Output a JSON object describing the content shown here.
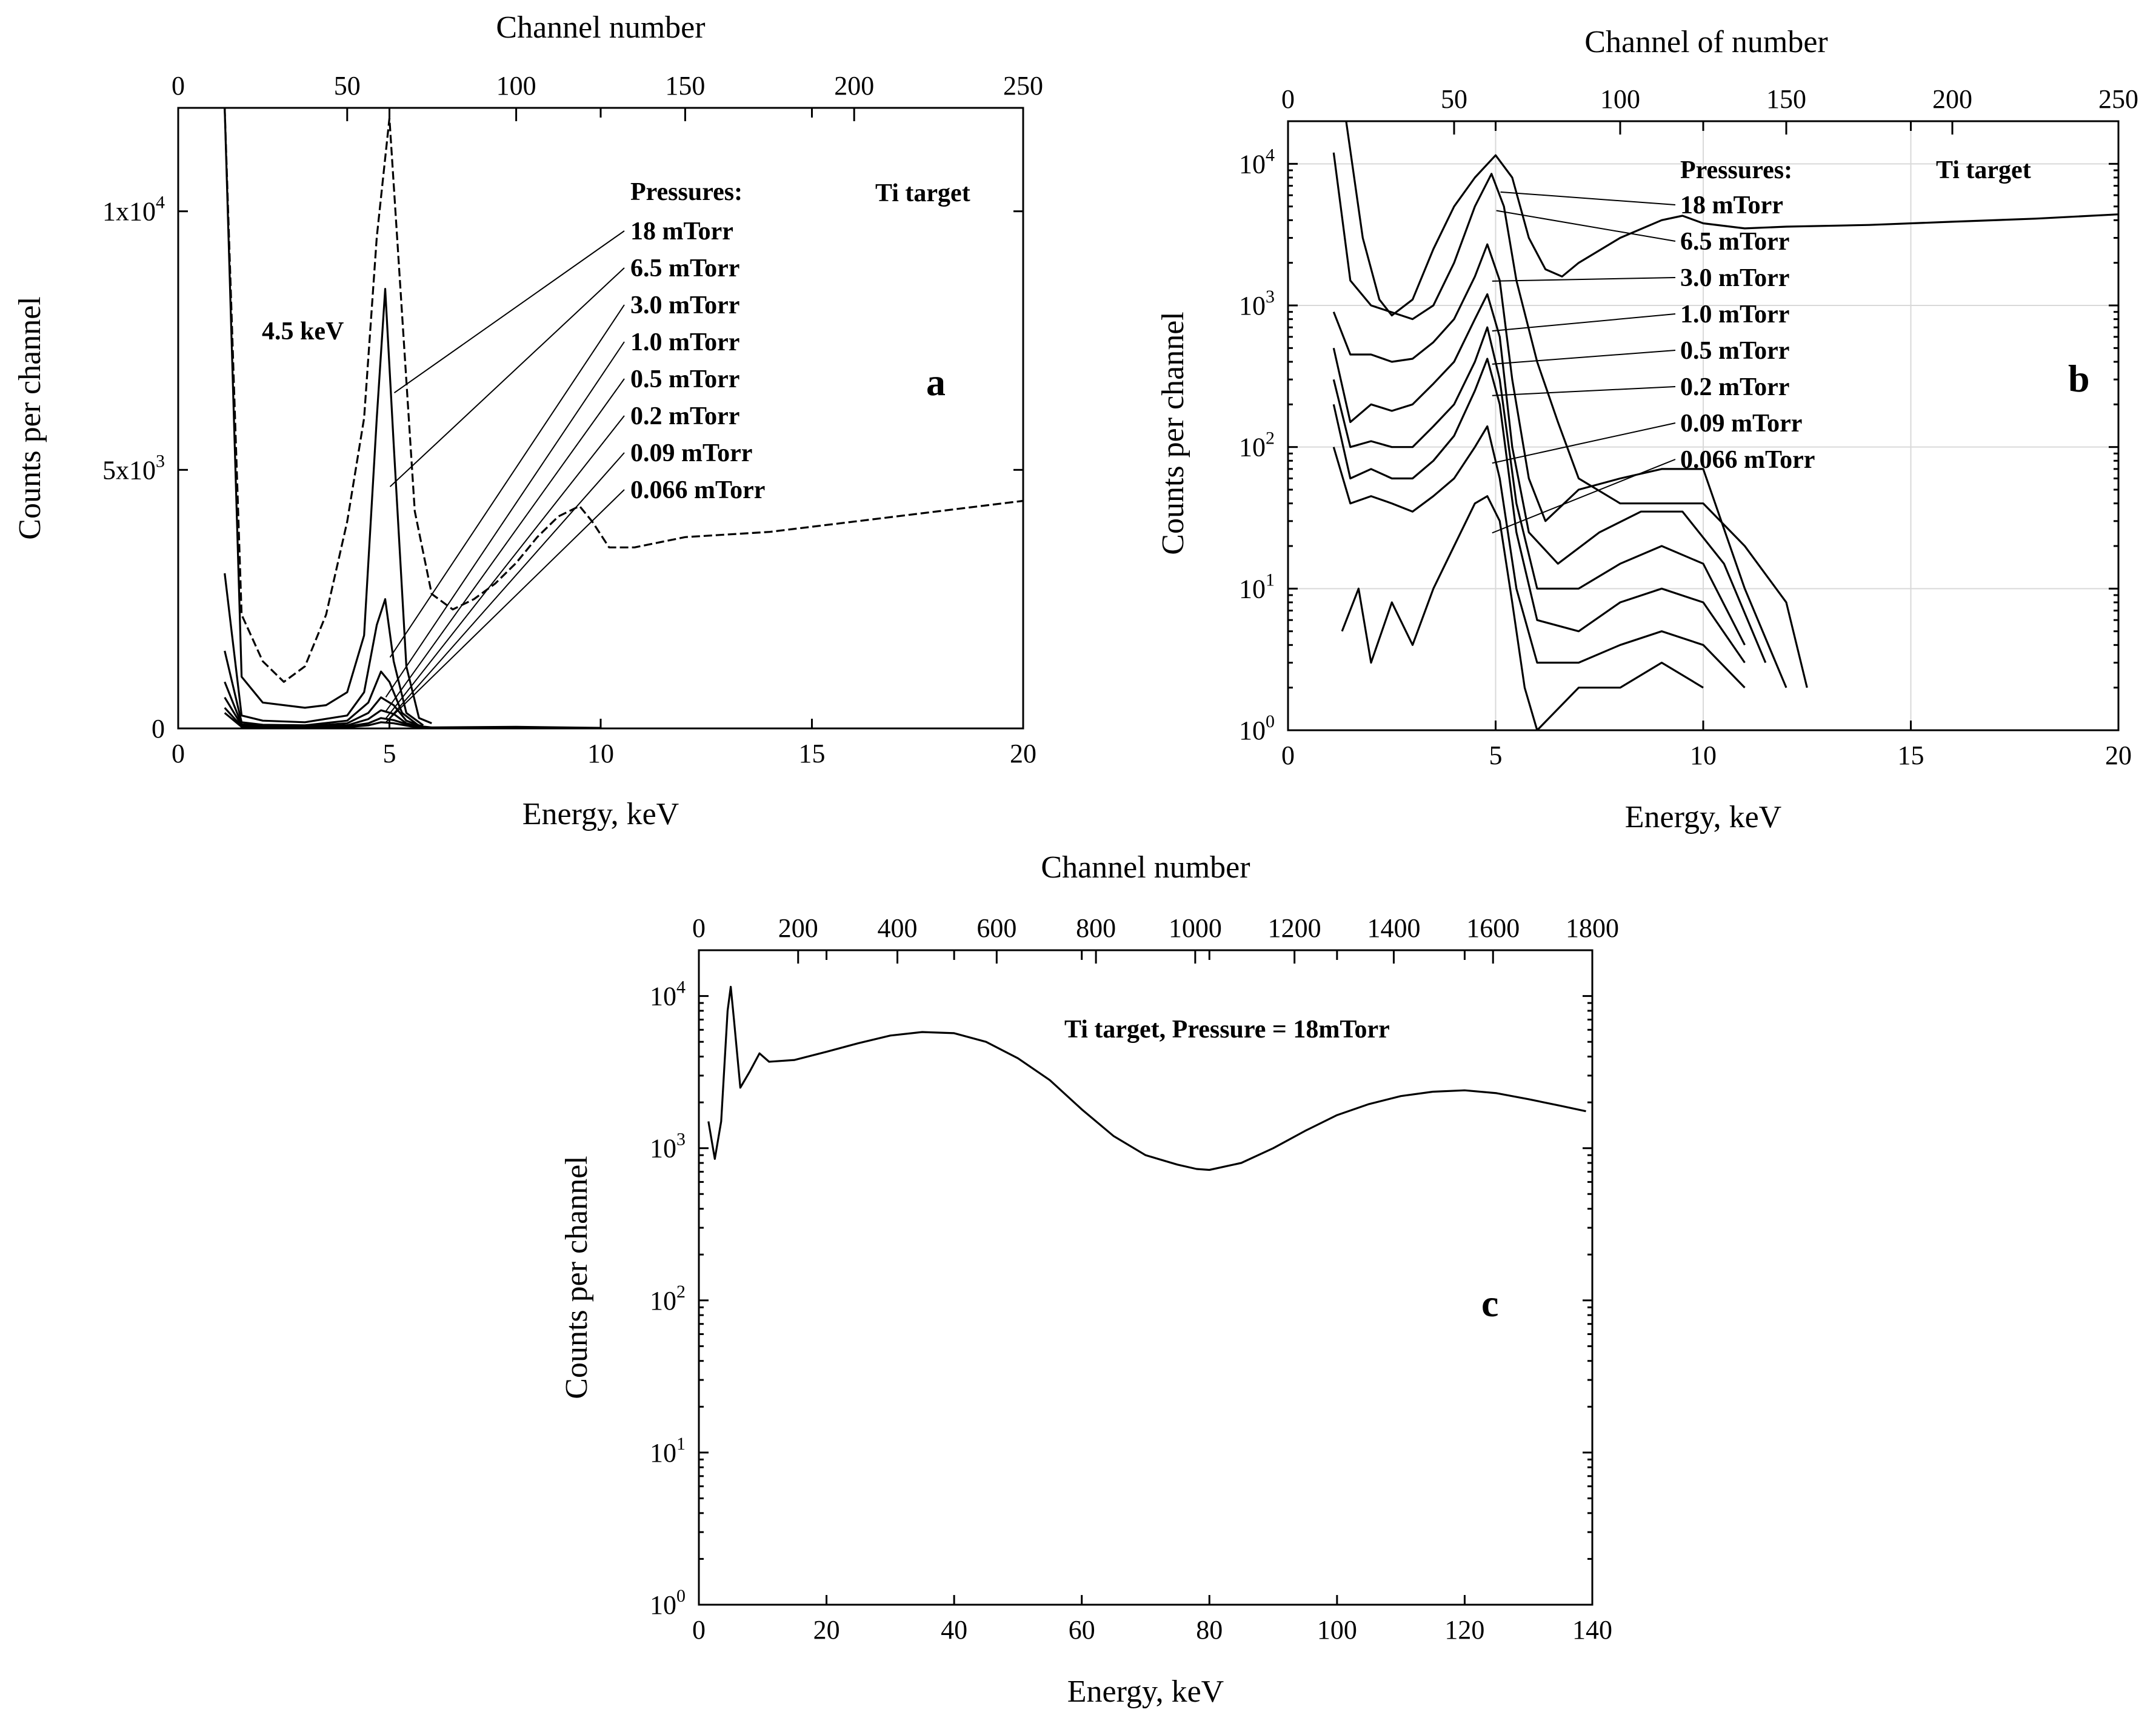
{
  "chart_data": [
    {
      "panel": "a",
      "type": "line",
      "yscale": "linear",
      "xlabel": "Energy, keV",
      "ylabel": "Counts per channel",
      "top_xlabel": "Channel number",
      "xlim": [
        0,
        20
      ],
      "ylim": [
        0,
        12000
      ],
      "x_ticks": [
        0,
        5,
        10,
        15,
        20
      ],
      "x_tick_labels": [
        "0",
        "5",
        "10",
        "15",
        "20"
      ],
      "top_ticks": [
        0,
        50,
        100,
        150,
        200,
        250
      ],
      "top_tick_labels": [
        "0",
        "50",
        "100",
        "150",
        "200",
        "250"
      ],
      "top_range": [
        0,
        250
      ],
      "y_ticks": [
        0,
        5000,
        10000
      ],
      "y_tick_labels": [
        {
          "base": "0",
          "exp": ""
        },
        {
          "base": "5x10",
          "exp": "3"
        },
        {
          "base": "1x10",
          "exp": "4"
        }
      ],
      "annotation": "4.5 keV",
      "legend_title": "Pressures:",
      "target_label": "Ti target",
      "letter": "a",
      "series": [
        {
          "name": "18 mTorr",
          "x": [
            1.1,
            1.5,
            2.0,
            2.5,
            3.0,
            3.5,
            4.0,
            4.4,
            4.7,
            5.0,
            5.3,
            5.6,
            6.0,
            6.5,
            7.0,
            7.5,
            8.0,
            8.5,
            9.0,
            9.5,
            9.8,
            10.2,
            10.8,
            12.0,
            14.0,
            16.0,
            18.0,
            20.0
          ],
          "y": [
            12000,
            2200,
            1300,
            900,
            1200,
            2200,
            4000,
            6000,
            9500,
            11800,
            8000,
            4200,
            2600,
            2300,
            2500,
            2800,
            3200,
            3700,
            4100,
            4300,
            4000,
            3500,
            3500,
            3700,
            3800,
            4000,
            4200,
            4400
          ]
        },
        {
          "name": "6.5 mTorr",
          "x": [
            1.1,
            1.5,
            2.0,
            3.0,
            3.5,
            4.0,
            4.4,
            4.7,
            4.9,
            5.1,
            5.4,
            5.7,
            6.0
          ],
          "y": [
            12000,
            1000,
            500,
            400,
            450,
            700,
            1800,
            6000,
            8500,
            5500,
            1200,
            200,
            100
          ]
        },
        {
          "name": "3.0 mTorr",
          "x": [
            1.1,
            1.5,
            2.0,
            3.0,
            4.0,
            4.4,
            4.7,
            4.9,
            5.1,
            5.4,
            5.8
          ],
          "y": [
            3000,
            250,
            150,
            120,
            250,
            700,
            2000,
            2500,
            1300,
            300,
            60
          ]
        },
        {
          "name": "1.0 mTorr",
          "x": [
            1.1,
            1.5,
            2.0,
            3.0,
            4.0,
            4.5,
            4.8,
            5.0,
            5.3,
            5.7
          ],
          "y": [
            1500,
            120,
            70,
            60,
            150,
            500,
            1100,
            900,
            300,
            50
          ]
        },
        {
          "name": "0.5 mTorr",
          "x": [
            1.1,
            1.5,
            2.0,
            3.0,
            4.0,
            4.5,
            4.8,
            5.1,
            5.4,
            5.8
          ],
          "y": [
            900,
            80,
            50,
            40,
            100,
            300,
            600,
            450,
            150,
            30
          ]
        },
        {
          "name": "0.2 mTorr",
          "x": [
            1.1,
            1.5,
            2.0,
            3.0,
            4.0,
            4.5,
            4.8,
            5.1,
            5.4,
            5.8
          ],
          "y": [
            600,
            60,
            40,
            30,
            60,
            180,
            350,
            280,
            100,
            20
          ]
        },
        {
          "name": "0.09 mTorr",
          "x": [
            1.1,
            1.5,
            2.0,
            3.0,
            4.0,
            4.5,
            4.8,
            5.1,
            5.5,
            6.0,
            8.0,
            10.0
          ],
          "y": [
            400,
            40,
            25,
            20,
            40,
            100,
            200,
            160,
            60,
            20,
            30,
            10
          ]
        },
        {
          "name": "0.066 mTorr",
          "x": [
            1.1,
            1.5,
            2.0,
            3.0,
            4.0,
            4.5,
            4.8,
            5.1,
            5.5,
            6.0,
            8.0,
            10.0
          ],
          "y": [
            300,
            30,
            20,
            15,
            25,
            60,
            120,
            100,
            40,
            15,
            20,
            5
          ]
        }
      ]
    },
    {
      "panel": "b",
      "type": "line",
      "yscale": "log",
      "xlabel": "Energy, keV",
      "ylabel": "Counts per channel",
      "top_xlabel": "Channel of number",
      "xlim": [
        0,
        20
      ],
      "ylim": [
        1,
        20000
      ],
      "x_ticks": [
        0,
        5,
        10,
        15,
        20
      ],
      "x_tick_labels": [
        "0",
        "5",
        "10",
        "15",
        "20"
      ],
      "top_ticks": [
        0,
        50,
        100,
        150,
        200,
        250
      ],
      "top_tick_labels": [
        "0",
        "50",
        "100",
        "150",
        "200",
        "250"
      ],
      "top_range": [
        0,
        250
      ],
      "y_ticks": [
        1,
        10,
        100,
        1000,
        10000
      ],
      "y_tick_labels": [
        {
          "base": "10",
          "exp": "0"
        },
        {
          "base": "10",
          "exp": "1"
        },
        {
          "base": "10",
          "exp": "2"
        },
        {
          "base": "10",
          "exp": "3"
        },
        {
          "base": "10",
          "exp": "4"
        }
      ],
      "legend_title": "Pressures:",
      "target_label": "Ti target",
      "letter": "b",
      "series": [
        {
          "name": "18 mTorr",
          "x": [
            1.4,
            1.8,
            2.2,
            2.5,
            3.0,
            3.5,
            4.0,
            4.5,
            5.0,
            5.4,
            5.8,
            6.2,
            6.6,
            7.0,
            8.0,
            9.0,
            9.5,
            10.0,
            11.0,
            12.0,
            14.0,
            16.0,
            18.0,
            20.0
          ],
          "y": [
            20000,
            3000,
            1100,
            850,
            1100,
            2500,
            5000,
            8000,
            11500,
            8000,
            3000,
            1800,
            1600,
            2000,
            3000,
            4000,
            4300,
            3800,
            3500,
            3600,
            3700,
            3900,
            4100,
            4400
          ]
        },
        {
          "name": "6.5 mTorr",
          "x": [
            1.1,
            1.5,
            2.0,
            3.0,
            3.5,
            4.0,
            4.5,
            4.9,
            5.2,
            5.5,
            6.0,
            6.5,
            7.0,
            8.0,
            9.0,
            10.0,
            11.0,
            12.0,
            12.5
          ],
          "y": [
            12000,
            1500,
            1000,
            800,
            1000,
            2000,
            5000,
            8500,
            5000,
            1500,
            400,
            150,
            60,
            40,
            40,
            40,
            20,
            8,
            2
          ]
        },
        {
          "name": "3.0 mTorr",
          "x": [
            1.1,
            1.5,
            2.0,
            2.5,
            3.0,
            3.5,
            4.0,
            4.5,
            4.8,
            5.1,
            5.4,
            5.8,
            6.2,
            7.0,
            8.0,
            9.0,
            10.0,
            11.0,
            12.0
          ],
          "y": [
            900,
            450,
            450,
            400,
            420,
            550,
            800,
            1600,
            2700,
            1500,
            300,
            60,
            30,
            50,
            60,
            70,
            70,
            10,
            2
          ]
        },
        {
          "name": "1.0 mTorr",
          "x": [
            1.1,
            1.5,
            2.0,
            2.5,
            3.0,
            3.5,
            4.0,
            4.5,
            4.8,
            5.1,
            5.4,
            5.8,
            6.5,
            7.5,
            8.5,
            9.5,
            10.5,
            11.5
          ],
          "y": [
            500,
            150,
            200,
            180,
            200,
            280,
            400,
            800,
            1200,
            600,
            100,
            25,
            15,
            25,
            35,
            35,
            15,
            3
          ]
        },
        {
          "name": "0.5 mTorr",
          "x": [
            1.1,
            1.5,
            2.0,
            2.5,
            3.0,
            3.5,
            4.0,
            4.5,
            4.8,
            5.1,
            5.5,
            6.0,
            7.0,
            8.0,
            9.0,
            10.0,
            11.0
          ],
          "y": [
            300,
            100,
            110,
            100,
            100,
            140,
            200,
            400,
            700,
            300,
            40,
            10,
            10,
            15,
            20,
            15,
            4
          ]
        },
        {
          "name": "0.2 mTorr",
          "x": [
            1.1,
            1.5,
            2.0,
            2.5,
            3.0,
            3.5,
            4.0,
            4.5,
            4.8,
            5.1,
            5.5,
            6.0,
            7.0,
            8.0,
            9.0,
            10.0,
            11.0
          ],
          "y": [
            200,
            60,
            70,
            60,
            60,
            80,
            120,
            250,
            420,
            200,
            25,
            6,
            5,
            8,
            10,
            8,
            3
          ]
        },
        {
          "name": "0.09 mTorr",
          "x": [
            1.1,
            1.5,
            2.0,
            2.5,
            3.0,
            3.5,
            4.0,
            4.5,
            4.8,
            5.1,
            5.5,
            6.0,
            7.0,
            8.0,
            9.0,
            10.0,
            11.0
          ],
          "y": [
            100,
            40,
            45,
            40,
            35,
            45,
            60,
            100,
            140,
            60,
            10,
            3,
            3,
            4,
            5,
            4,
            2
          ]
        },
        {
          "name": "0.066 mTorr",
          "x": [
            1.3,
            1.7,
            2.0,
            2.5,
            3.0,
            3.5,
            4.0,
            4.5,
            4.8,
            5.1,
            5.4,
            5.7,
            6.0,
            7.0,
            8.0,
            9.0,
            10.0
          ],
          "y": [
            5,
            10,
            3,
            8,
            4,
            10,
            20,
            40,
            45,
            30,
            8,
            2,
            1,
            2,
            2,
            3,
            2
          ]
        }
      ]
    },
    {
      "panel": "c",
      "type": "line",
      "yscale": "log",
      "xlabel": "Energy, keV",
      "ylabel": "Counts per channel",
      "top_xlabel": "Channel number",
      "xlim": [
        0,
        140
      ],
      "ylim": [
        1,
        20000
      ],
      "x_ticks": [
        0,
        20,
        40,
        60,
        80,
        100,
        120,
        140
      ],
      "x_tick_labels": [
        "0",
        "20",
        "40",
        "60",
        "80",
        "100",
        "120",
        "140"
      ],
      "top_ticks": [
        0,
        200,
        400,
        600,
        800,
        1000,
        1200,
        1400,
        1600,
        1800
      ],
      "top_tick_labels": [
        "0",
        "200",
        "400",
        "600",
        "800",
        "1000",
        "1200",
        "1400",
        "1600",
        "1800"
      ],
      "top_range": [
        0,
        1800
      ],
      "y_ticks": [
        1,
        10,
        100,
        1000,
        10000
      ],
      "y_tick_labels": [
        {
          "base": "10",
          "exp": "0"
        },
        {
          "base": "10",
          "exp": "1"
        },
        {
          "base": "10",
          "exp": "2"
        },
        {
          "base": "10",
          "exp": "3"
        },
        {
          "base": "10",
          "exp": "4"
        }
      ],
      "title": "Ti target, Pressure = 18mTorr",
      "letter": "c",
      "series": [
        {
          "name": "18 mTorr",
          "x": [
            1.5,
            2.5,
            3.5,
            4.5,
            5.0,
            5.5,
            6.5,
            8.0,
            9.5,
            11.0,
            15.0,
            20.0,
            25.0,
            30.0,
            35.0,
            40.0,
            45.0,
            50.0,
            55.0,
            60.0,
            65.0,
            70.0,
            75.0,
            78.0,
            80.0,
            85.0,
            90.0,
            95.0,
            100.0,
            105.0,
            110.0,
            115.0,
            120.0,
            125.0,
            130.0,
            135.0,
            139.0
          ],
          "y": [
            1500,
            850,
            1500,
            8000,
            11500,
            7000,
            2500,
            3200,
            4200,
            3700,
            3800,
            4300,
            4900,
            5500,
            5800,
            5700,
            5000,
            3900,
            2800,
            1800,
            1200,
            900,
            780,
            730,
            720,
            800,
            1000,
            1300,
            1650,
            1950,
            2200,
            2350,
            2400,
            2300,
            2100,
            1900,
            1750
          ]
        }
      ]
    }
  ],
  "panel_a": {
    "top_title": "Channel number",
    "bottom_title": "Energy, keV",
    "y_title": "Counts per channel",
    "annotation": "4.5 keV",
    "pressures_title": "Pressures:",
    "target": "Ti target",
    "letter": "a"
  },
  "panel_b": {
    "top_title": "Channel of number",
    "bottom_title": "Energy, keV",
    "y_title": "Counts per channel",
    "pressures_title": "Pressures:",
    "target": "Ti target",
    "letter": "b"
  },
  "panel_c": {
    "top_title": "Channel number",
    "bottom_title": "Energy, keV",
    "y_title": "Counts per channel",
    "title": "Ti target, Pressure = 18mTorr",
    "letter": "c"
  }
}
